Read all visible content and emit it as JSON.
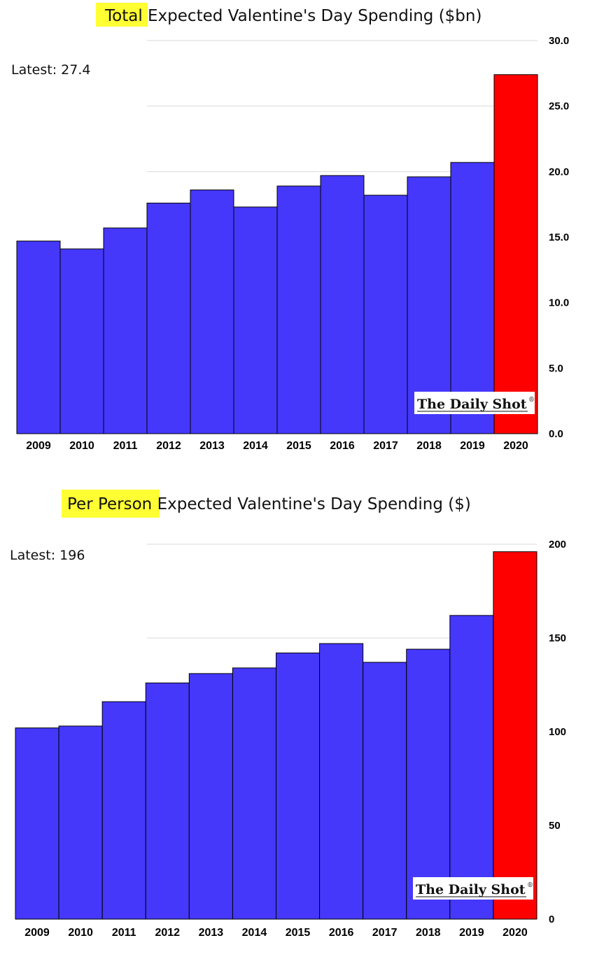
{
  "chart_data": [
    {
      "type": "bar",
      "title_highlight": "Total",
      "title_rest": " Expected Valentine's Day Spending ($bn)",
      "latest_label": "Latest:  27.4",
      "categories": [
        "2009",
        "2010",
        "2011",
        "2012",
        "2013",
        "2014",
        "2015",
        "2016",
        "2017",
        "2018",
        "2019",
        "2020"
      ],
      "values": [
        14.7,
        14.1,
        15.7,
        17.6,
        18.6,
        17.3,
        18.9,
        19.7,
        18.2,
        19.6,
        20.7,
        27.4
      ],
      "yticks": [
        "0.0",
        "5.0",
        "10.0",
        "15.0",
        "20.0",
        "25.0",
        "30.0"
      ],
      "ylim": [
        0,
        30
      ],
      "grid": true,
      "watermark": "The Daily Shot",
      "colors": {
        "bar": "#4538fb",
        "latest_bar": "#ff0000",
        "highlight": "#ffff33",
        "grid": "#d9d9d9"
      }
    },
    {
      "type": "bar",
      "title_highlight": "Per Person",
      "title_rest": " Expected Valentine's Day Spending ($)",
      "latest_label": "Latest:  196",
      "categories": [
        "2009",
        "2010",
        "2011",
        "2012",
        "2013",
        "2014",
        "2015",
        "2016",
        "2017",
        "2018",
        "2019",
        "2020"
      ],
      "values": [
        102,
        103,
        116,
        126,
        131,
        134,
        142,
        147,
        137,
        144,
        162,
        196
      ],
      "yticks": [
        "0",
        "50",
        "100",
        "150",
        "200"
      ],
      "ylim": [
        0,
        200
      ],
      "grid": true,
      "watermark": "The Daily Shot",
      "colors": {
        "bar": "#4538fb",
        "latest_bar": "#ff0000",
        "highlight": "#ffff33",
        "grid": "#d9d9d9"
      }
    }
  ]
}
